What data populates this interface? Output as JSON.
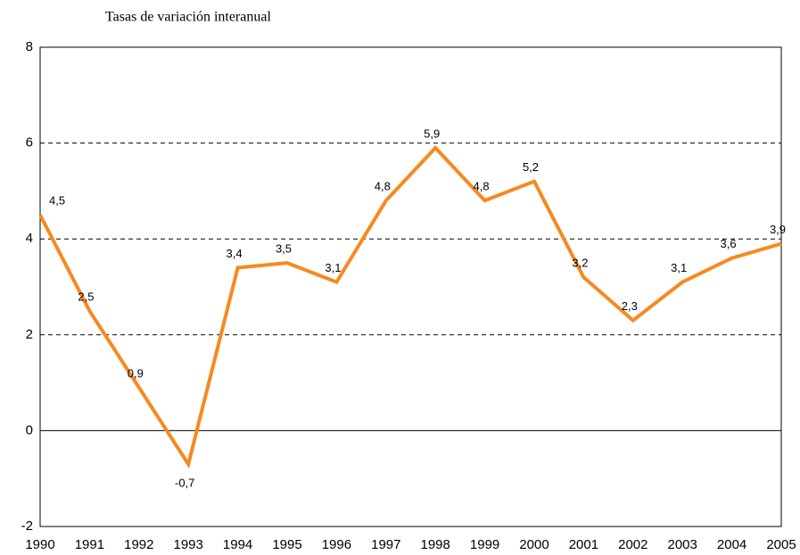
{
  "chart_data": {
    "type": "line",
    "title": "Tasas de variación interanual",
    "categories": [
      "1990",
      "1991",
      "1992",
      "1993",
      "1994",
      "1995",
      "1996",
      "1997",
      "1998",
      "1999",
      "2000",
      "2001",
      "2002",
      "2003",
      "2004",
      "2005"
    ],
    "series": [
      {
        "name": "Tasas de variación interanual",
        "color": "#f7891f",
        "values": [
          4.5,
          2.5,
          0.9,
          -0.7,
          3.4,
          3.5,
          3.1,
          4.8,
          5.9,
          4.8,
          5.2,
          3.2,
          2.3,
          3.1,
          3.6,
          3.9
        ],
        "value_labels": [
          "4,5",
          "2,5",
          "0,9",
          "-0,7",
          "3,4",
          "3,5",
          "3,1",
          "4,8",
          "5,9",
          "4,8",
          "5,2",
          "3,2",
          "2,3",
          "3,1",
          "3,6",
          "3,9"
        ]
      }
    ],
    "ylim": [
      -2,
      8
    ],
    "yticks": [
      -2,
      0,
      2,
      4,
      6,
      8
    ],
    "grid": true
  }
}
